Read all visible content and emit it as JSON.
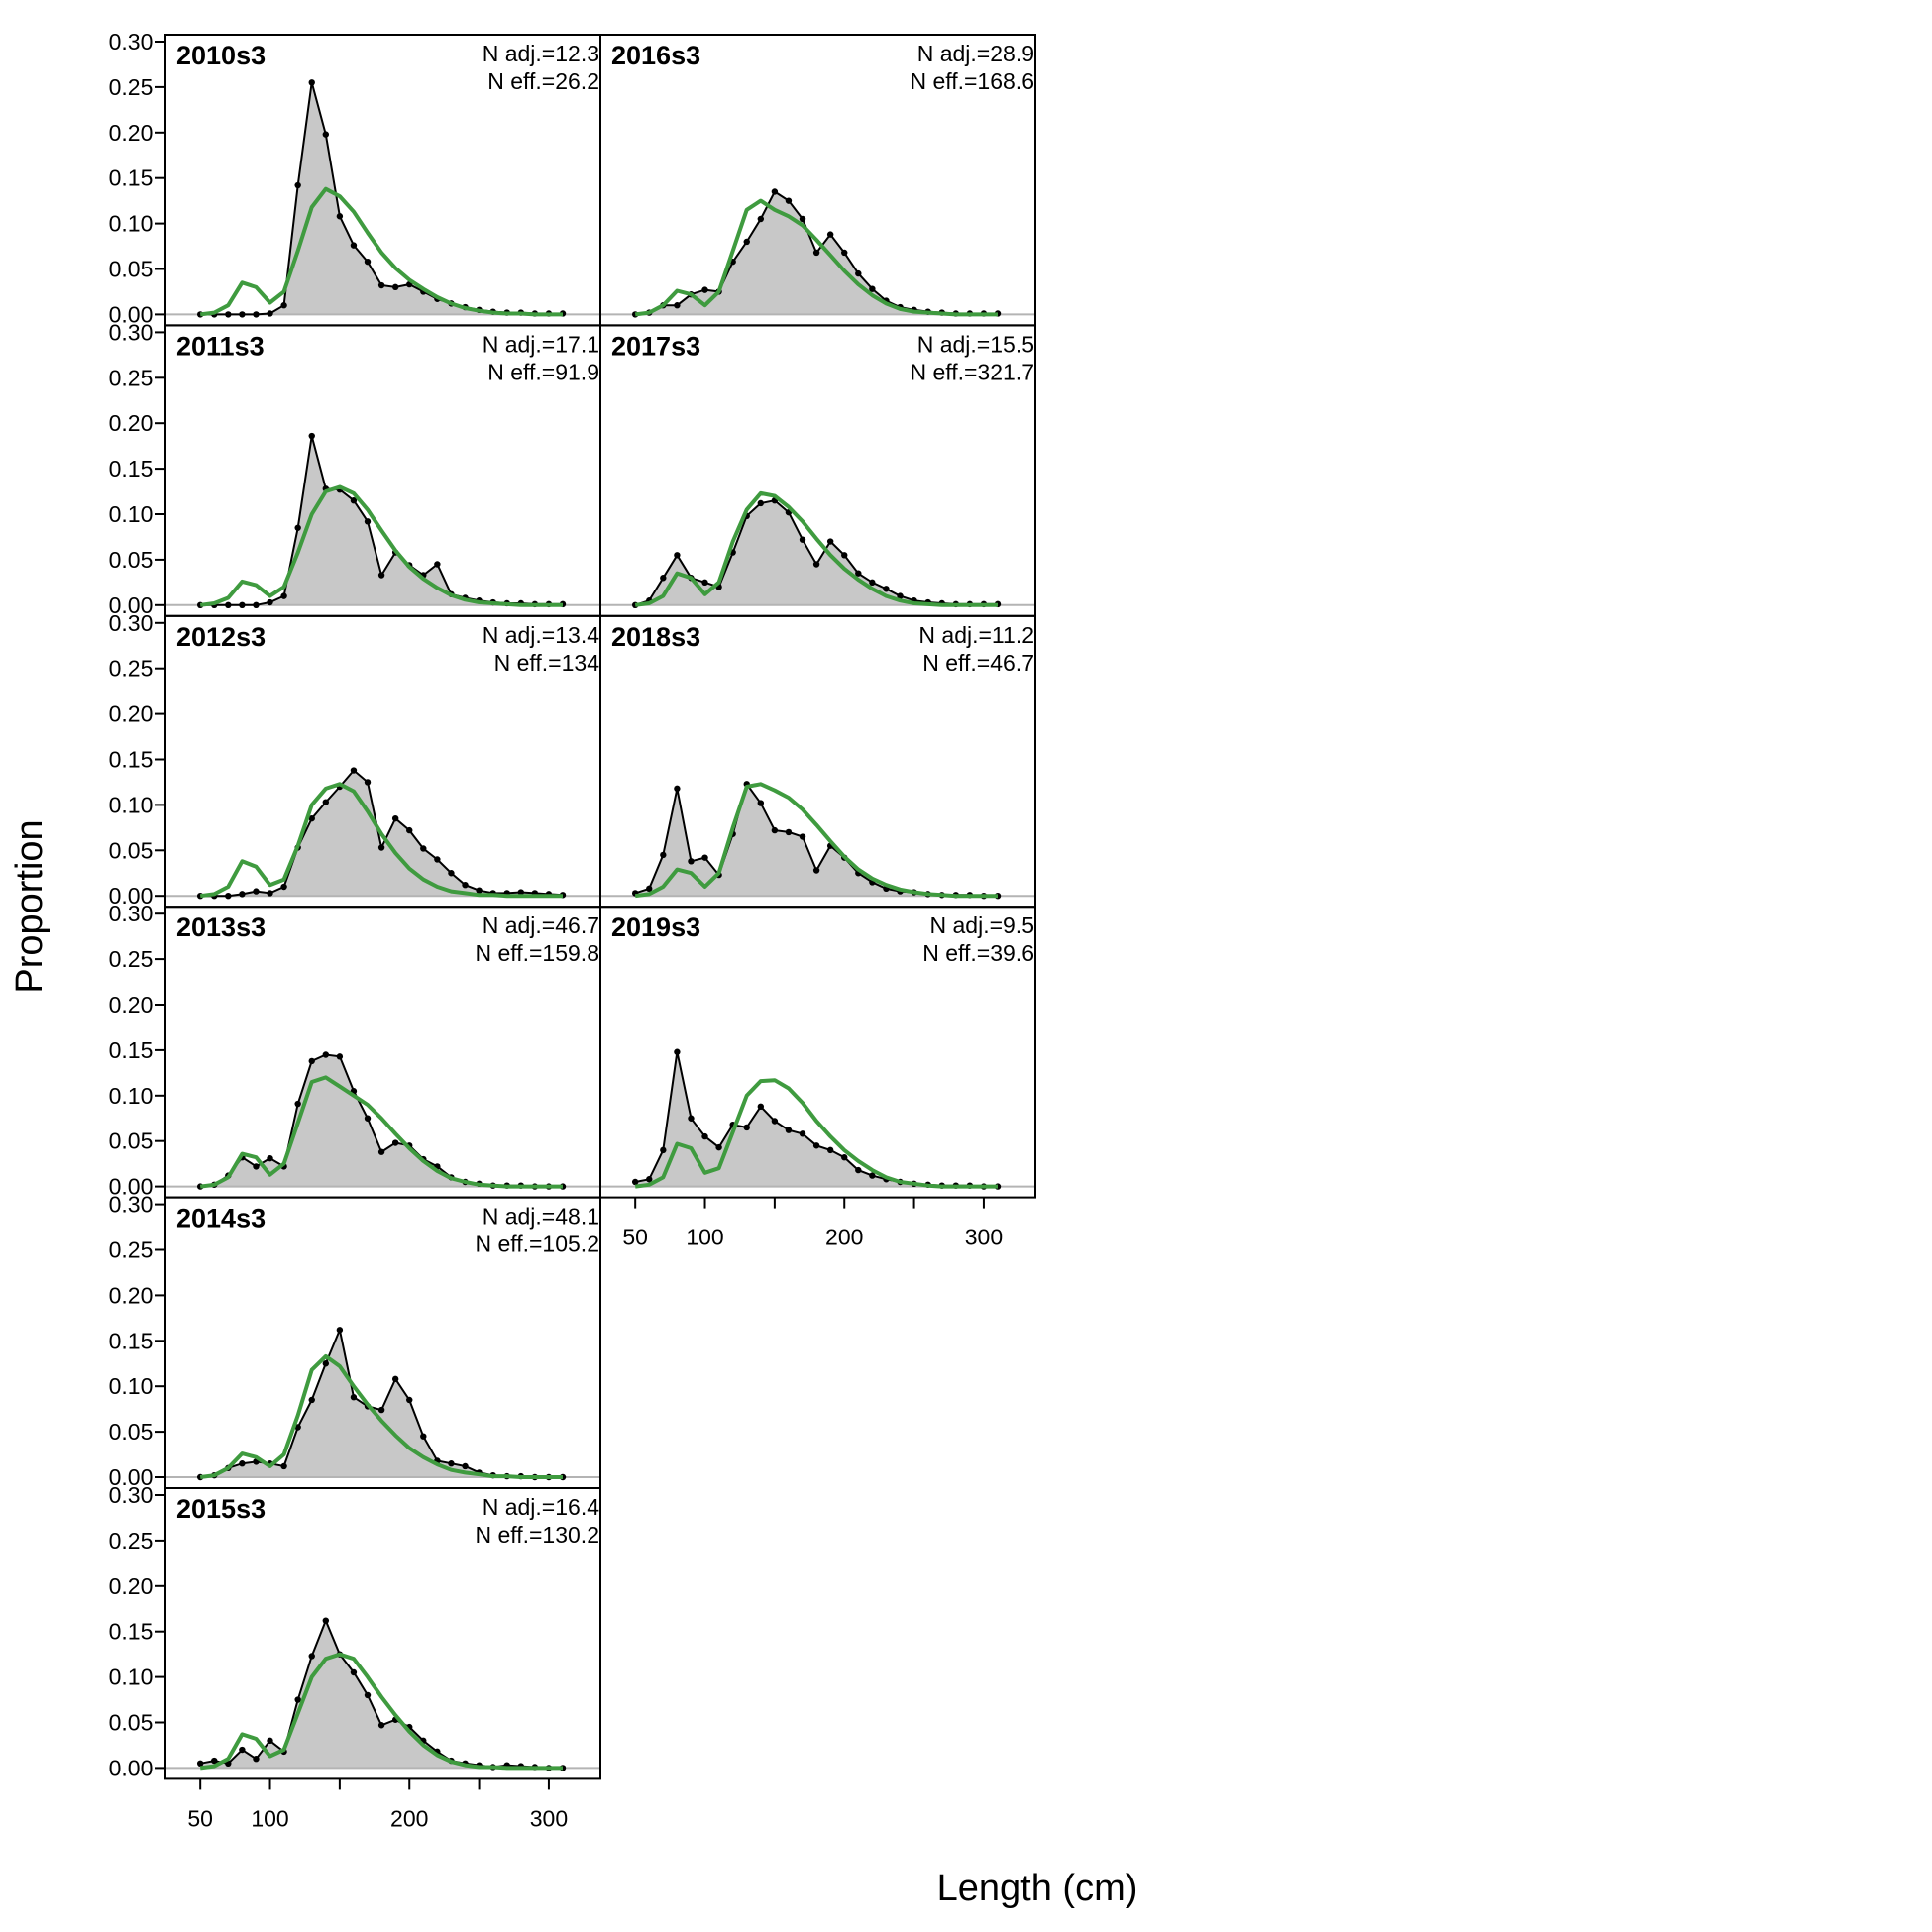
{
  "figure": {
    "xlabel": "Length (cm)",
    "ylabel": "Proportion",
    "y_ticks": [
      "0.00",
      "0.05",
      "0.10",
      "0.15",
      "0.20",
      "0.25",
      "0.30"
    ],
    "x_ticks": [
      "50",
      "100",
      "200",
      "300"
    ],
    "colors": {
      "observed_fill": "#c8c8c8",
      "observed_line": "#000000",
      "expected_line": "#3f9b3f",
      "zero_line": "#b4b4b4"
    }
  },
  "chart_data": {
    "type": "area",
    "layout": {
      "columns": 2,
      "column_1_rows": 6,
      "column_2_rows": 4
    },
    "x": [
      50,
      60,
      70,
      80,
      90,
      100,
      110,
      120,
      130,
      140,
      150,
      160,
      170,
      180,
      190,
      200,
      210,
      220,
      230,
      240,
      250,
      260,
      270,
      280,
      290,
      300,
      310
    ],
    "xlim": [
      25,
      337
    ],
    "ylim": [
      0,
      0.3
    ],
    "grid": false,
    "series_styles": {
      "observed": "grey shaded area with black points and line",
      "expected": "green line"
    },
    "panels": [
      {
        "title": "2010s3",
        "n_adj": "N adj.=12.3",
        "n_eff": "N eff.=26.2",
        "observed": [
          0,
          0,
          0,
          0,
          0,
          0.001,
          0.01,
          0.142,
          0.255,
          0.198,
          0.108,
          0.076,
          0.058,
          0.032,
          0.03,
          0.033,
          0.025,
          0.017,
          0.012,
          0.008,
          0.005,
          0.003,
          0.002,
          0.002,
          0.001,
          0.001,
          0.001
        ],
        "expected": [
          0,
          0.002,
          0.01,
          0.035,
          0.03,
          0.013,
          0.025,
          0.07,
          0.118,
          0.138,
          0.13,
          0.113,
          0.09,
          0.068,
          0.051,
          0.038,
          0.028,
          0.019,
          0.012,
          0.007,
          0.004,
          0.002,
          0.001,
          0.001,
          0,
          0,
          0
        ]
      },
      {
        "title": "2011s3",
        "n_adj": "N adj.=17.1",
        "n_eff": "N eff.=91.9",
        "observed": [
          0,
          0,
          0,
          0,
          0,
          0.003,
          0.01,
          0.085,
          0.186,
          0.128,
          0.127,
          0.115,
          0.092,
          0.033,
          0.058,
          0.044,
          0.033,
          0.045,
          0.012,
          0.008,
          0.005,
          0.003,
          0.002,
          0.002,
          0.001,
          0.001,
          0.001
        ],
        "expected": [
          0,
          0.002,
          0.008,
          0.026,
          0.022,
          0.01,
          0.02,
          0.058,
          0.1,
          0.125,
          0.13,
          0.123,
          0.105,
          0.082,
          0.06,
          0.042,
          0.029,
          0.019,
          0.011,
          0.006,
          0.003,
          0.002,
          0.001,
          0,
          0,
          0,
          0
        ]
      },
      {
        "title": "2012s3",
        "n_adj": "N adj.=13.4",
        "n_eff": "N eff.=134",
        "observed": [
          0,
          0,
          0,
          0.002,
          0.005,
          0.003,
          0.01,
          0.053,
          0.085,
          0.103,
          0.12,
          0.138,
          0.125,
          0.053,
          0.085,
          0.072,
          0.052,
          0.04,
          0.025,
          0.012,
          0.006,
          0.003,
          0.003,
          0.004,
          0.003,
          0.002,
          0.001
        ],
        "expected": [
          0,
          0.002,
          0.01,
          0.038,
          0.032,
          0.012,
          0.018,
          0.055,
          0.1,
          0.118,
          0.123,
          0.115,
          0.093,
          0.068,
          0.047,
          0.03,
          0.018,
          0.01,
          0.005,
          0.003,
          0.001,
          0.001,
          0,
          0,
          0,
          0,
          0
        ]
      },
      {
        "title": "2013s3",
        "n_adj": "N adj.=46.7",
        "n_eff": "N eff.=159.8",
        "observed": [
          0,
          0.002,
          0.012,
          0.032,
          0.022,
          0.031,
          0.022,
          0.091,
          0.138,
          0.145,
          0.143,
          0.105,
          0.075,
          0.038,
          0.048,
          0.045,
          0.03,
          0.022,
          0.01,
          0.005,
          0.003,
          0.001,
          0.001,
          0.001,
          0,
          0,
          0
        ],
        "expected": [
          0,
          0.002,
          0.01,
          0.036,
          0.032,
          0.013,
          0.025,
          0.07,
          0.115,
          0.12,
          0.11,
          0.1,
          0.09,
          0.075,
          0.058,
          0.042,
          0.028,
          0.017,
          0.009,
          0.005,
          0.002,
          0.001,
          0,
          0,
          0,
          0,
          0
        ]
      },
      {
        "title": "2014s3",
        "n_adj": "N adj.=48.1",
        "n_eff": "N eff.=105.2",
        "observed": [
          0,
          0.002,
          0.01,
          0.015,
          0.017,
          0.015,
          0.012,
          0.055,
          0.085,
          0.125,
          0.162,
          0.088,
          0.078,
          0.074,
          0.108,
          0.085,
          0.045,
          0.018,
          0.015,
          0.012,
          0.005,
          0.002,
          0.001,
          0.001,
          0,
          0,
          0
        ],
        "expected": [
          0,
          0.002,
          0.01,
          0.026,
          0.022,
          0.012,
          0.025,
          0.068,
          0.118,
          0.133,
          0.122,
          0.1,
          0.08,
          0.062,
          0.046,
          0.032,
          0.022,
          0.014,
          0.008,
          0.005,
          0.003,
          0.001,
          0.001,
          0,
          0,
          0,
          0
        ]
      },
      {
        "title": "2015s3",
        "n_adj": "N adj.=16.4",
        "n_eff": "N eff.=130.2",
        "observed": [
          0.005,
          0.008,
          0.005,
          0.02,
          0.01,
          0.03,
          0.018,
          0.075,
          0.123,
          0.162,
          0.125,
          0.105,
          0.08,
          0.047,
          0.053,
          0.045,
          0.03,
          0.018,
          0.008,
          0.005,
          0.003,
          0.001,
          0.003,
          0.002,
          0.001,
          0,
          0
        ],
        "expected": [
          0,
          0.002,
          0.01,
          0.037,
          0.032,
          0.013,
          0.02,
          0.06,
          0.1,
          0.12,
          0.125,
          0.12,
          0.1,
          0.078,
          0.058,
          0.04,
          0.025,
          0.014,
          0.007,
          0.003,
          0.001,
          0.001,
          0,
          0,
          0,
          0,
          0
        ]
      },
      {
        "title": "2016s3",
        "n_adj": "N adj.=28.9",
        "n_eff": "N eff.=168.6",
        "observed": [
          0,
          0.002,
          0.01,
          0.01,
          0.022,
          0.027,
          0.025,
          0.058,
          0.08,
          0.105,
          0.135,
          0.125,
          0.105,
          0.068,
          0.088,
          0.068,
          0.045,
          0.028,
          0.015,
          0.008,
          0.005,
          0.003,
          0.002,
          0.001,
          0.001,
          0.001,
          0.001
        ],
        "expected": [
          0,
          0.002,
          0.01,
          0.026,
          0.022,
          0.01,
          0.025,
          0.07,
          0.115,
          0.125,
          0.115,
          0.108,
          0.098,
          0.082,
          0.065,
          0.048,
          0.033,
          0.021,
          0.012,
          0.006,
          0.003,
          0.002,
          0.001,
          0,
          0,
          0,
          0
        ]
      },
      {
        "title": "2017s3",
        "n_adj": "N adj.=15.5",
        "n_eff": "N eff.=321.7",
        "observed": [
          0,
          0.005,
          0.03,
          0.055,
          0.03,
          0.025,
          0.02,
          0.058,
          0.098,
          0.112,
          0.115,
          0.102,
          0.072,
          0.045,
          0.07,
          0.055,
          0.035,
          0.025,
          0.018,
          0.01,
          0.005,
          0.003,
          0.002,
          0.001,
          0.001,
          0.001,
          0.001
        ],
        "expected": [
          0,
          0.002,
          0.01,
          0.035,
          0.03,
          0.012,
          0.025,
          0.07,
          0.105,
          0.123,
          0.12,
          0.108,
          0.092,
          0.073,
          0.055,
          0.04,
          0.028,
          0.018,
          0.01,
          0.005,
          0.002,
          0.001,
          0,
          0,
          0,
          0,
          0
        ]
      },
      {
        "title": "2018s3",
        "n_adj": "N adj.=11.2",
        "n_eff": "N eff.=46.7",
        "observed": [
          0.003,
          0.008,
          0.045,
          0.118,
          0.038,
          0.042,
          0.023,
          0.068,
          0.123,
          0.102,
          0.072,
          0.07,
          0.065,
          0.028,
          0.055,
          0.042,
          0.025,
          0.015,
          0.008,
          0.005,
          0.004,
          0.002,
          0.001,
          0.001,
          0.001,
          0,
          0
        ],
        "expected": [
          0,
          0.002,
          0.01,
          0.029,
          0.025,
          0.01,
          0.025,
          0.075,
          0.12,
          0.123,
          0.116,
          0.108,
          0.095,
          0.078,
          0.06,
          0.043,
          0.029,
          0.019,
          0.012,
          0.007,
          0.004,
          0.002,
          0.001,
          0,
          0,
          0,
          0
        ]
      },
      {
        "title": "2019s3",
        "n_adj": "N adj.=9.5",
        "n_eff": "N eff.=39.6",
        "observed": [
          0.005,
          0.008,
          0.04,
          0.148,
          0.075,
          0.055,
          0.043,
          0.068,
          0.065,
          0.088,
          0.072,
          0.062,
          0.058,
          0.045,
          0.04,
          0.032,
          0.018,
          0.012,
          0.008,
          0.005,
          0.003,
          0.002,
          0.001,
          0.001,
          0.001,
          0,
          0
        ],
        "expected": [
          0,
          0.002,
          0.01,
          0.047,
          0.042,
          0.015,
          0.02,
          0.06,
          0.1,
          0.116,
          0.117,
          0.108,
          0.092,
          0.072,
          0.055,
          0.04,
          0.028,
          0.018,
          0.01,
          0.005,
          0.003,
          0.001,
          0,
          0,
          0,
          0,
          0
        ]
      }
    ]
  }
}
